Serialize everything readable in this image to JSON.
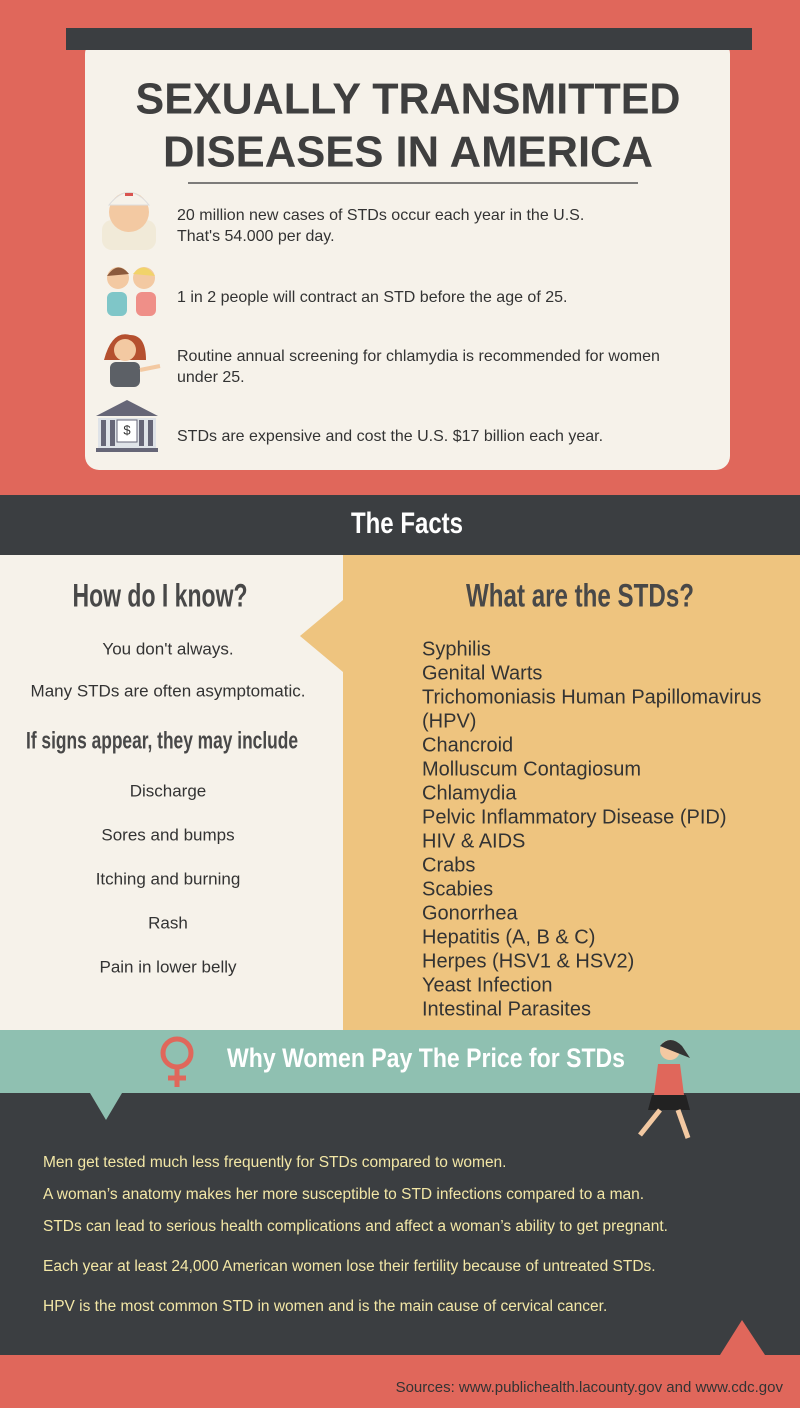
{
  "header": {
    "title_lines": [
      "SEXUALLY TRANSMITTED",
      "DISEASES IN AMERICA"
    ],
    "stats": [
      {
        "lines": [
          "20 million new cases of STDs occur each year in the U.S.",
          "That's 54.000 per day."
        ]
      },
      {
        "lines": [
          "1 in 2 people will contract an STD before the age of 25."
        ]
      },
      {
        "lines": [
          "Routine annual screening for chlamydia is recommended for women",
          "under 25."
        ]
      },
      {
        "lines": [
          "STDs are expensive and cost the U.S. $17 billion each year."
        ]
      }
    ]
  },
  "facts": {
    "title": "The Facts",
    "left": {
      "heading": "How do I know?",
      "lines": [
        "You don't always.",
        "Many STDs are often asymptomatic."
      ],
      "subheading": "If signs appear, they may include",
      "signs": [
        "Discharge",
        "Sores and bumps",
        "Itching and burning",
        "Rash",
        "Pain in lower belly"
      ]
    },
    "right": {
      "heading": "What are  the STDs?",
      "items": [
        "Syphilis",
        "Genital Warts",
        "Trichomoniasis Human Papillomavirus",
        "(HPV)",
        "Chancroid",
        "Molluscum Contagiosum",
        "Chlamydia",
        "Pelvic Inflammatory Disease (PID)",
        "HIV & AIDS",
        "Crabs",
        "Scabies",
        "Gonorrhea",
        "Hepatitis (A, B & C)",
        "Herpes (HSV1 & HSV2)",
        "Yeast Infection",
        "Intestinal Parasites"
      ]
    }
  },
  "women": {
    "title": "Why Women Pay The Price for STDs",
    "points": [
      "Men get tested much less frequently for STDs compared to women.",
      "A woman’s anatomy makes her more susceptible to  STD infections compared to a man.",
      "STDs can lead to serious health complications and  affect a woman’s ability to get pregnant.",
      "Each year at least 24,000 American women lose their fertility because of untreated STDs.",
      "HPV is the most common STD in women and is the main cause of cervical cancer."
    ]
  },
  "sources": "Sources: www.publichealth.lacounty.gov and www.cdc.gov"
}
